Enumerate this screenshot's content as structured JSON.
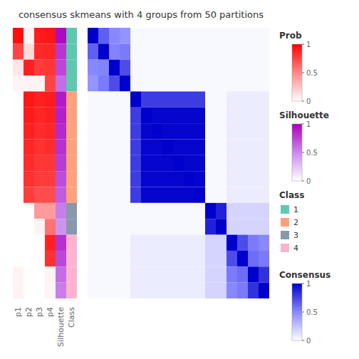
{
  "chart_data": {
    "type": "heatmap",
    "title": "consensus skmeans with 4 groups from 50 partitions",
    "sidebars": [
      {
        "name": "p1",
        "colorbar": "Prob",
        "values": [
          0.95,
          0.75,
          0.1,
          0.05,
          0.0,
          0.0,
          0.0,
          0.0,
          0.0,
          0.0,
          0.0,
          0.0,
          0.0,
          0.0,
          0.0,
          0.05,
          0.05
        ]
      },
      {
        "name": "p2",
        "colorbar": "Prob",
        "values": [
          0.05,
          0.15,
          0.88,
          0.05,
          0.92,
          0.9,
          0.88,
          0.86,
          0.84,
          0.82,
          0.78,
          0.0,
          0.0,
          0.0,
          0.0,
          0.0,
          0.0
        ]
      },
      {
        "name": "p3",
        "colorbar": "Prob",
        "values": [
          0.9,
          0.85,
          0.78,
          0.05,
          0.88,
          0.86,
          0.84,
          0.82,
          0.8,
          0.78,
          0.72,
          0.42,
          0.05,
          0.0,
          0.0,
          0.0,
          0.0
        ]
      },
      {
        "name": "p4",
        "colorbar": "Prob",
        "values": [
          0.92,
          0.86,
          0.8,
          0.75,
          0.9,
          0.88,
          0.86,
          0.84,
          0.8,
          0.78,
          0.72,
          0.42,
          0.58,
          0.88,
          0.82,
          0.05,
          0.04
        ]
      },
      {
        "name": "Silhouette",
        "colorbar": "Silhouette",
        "values": [
          0.96,
          0.8,
          0.74,
          0.6,
          0.9,
          0.88,
          0.85,
          0.82,
          0.78,
          0.72,
          0.66,
          0.54,
          0.46,
          0.82,
          0.74,
          0.6,
          0.54
        ]
      }
    ],
    "class_column": {
      "name": "Class",
      "values": [
        1,
        1,
        1,
        1,
        2,
        2,
        2,
        2,
        2,
        2,
        2,
        3,
        3,
        4,
        4,
        4,
        4
      ],
      "colors": {
        "1": [
          0.37,
          0.78,
          0.69
        ],
        "2": [
          1.0,
          0.63,
          0.48
        ],
        "3": [
          0.53,
          0.6,
          0.67
        ],
        "4": [
          1.0,
          0.7,
          0.82
        ]
      }
    },
    "cells_colorbar": "Consensus",
    "cells": [
      [
        1,
        0.65,
        0.5,
        0.45,
        0.03,
        0.03,
        0.03,
        0.03,
        0.03,
        0.03,
        0.03,
        0.03,
        0.03,
        0.03,
        0.03,
        0.03,
        0.03
      ],
      [
        0.65,
        1,
        0.52,
        0.55,
        0.03,
        0.03,
        0.03,
        0.03,
        0.03,
        0.03,
        0.03,
        0.03,
        0.03,
        0.03,
        0.03,
        0.03,
        0.03
      ],
      [
        0.5,
        0.52,
        1,
        0.72,
        0.03,
        0.03,
        0.03,
        0.03,
        0.03,
        0.03,
        0.03,
        0.03,
        0.03,
        0.03,
        0.03,
        0.03,
        0.03
      ],
      [
        0.45,
        0.55,
        0.72,
        1,
        0.03,
        0.03,
        0.03,
        0.03,
        0.03,
        0.03,
        0.03,
        0.03,
        0.03,
        0.03,
        0.03,
        0.03,
        0.03
      ],
      [
        0.03,
        0.03,
        0.03,
        0.03,
        1,
        0.78,
        0.78,
        0.78,
        0.78,
        0.78,
        0.78,
        0.03,
        0.03,
        0.08,
        0.08,
        0.08,
        0.08
      ],
      [
        0.03,
        0.03,
        0.03,
        0.03,
        0.78,
        1,
        0.98,
        0.98,
        0.98,
        0.98,
        0.98,
        0.03,
        0.03,
        0.08,
        0.08,
        0.08,
        0.08
      ],
      [
        0.03,
        0.03,
        0.03,
        0.03,
        0.78,
        0.98,
        1,
        0.98,
        0.98,
        0.98,
        0.98,
        0.03,
        0.03,
        0.08,
        0.08,
        0.08,
        0.08
      ],
      [
        0.03,
        0.03,
        0.03,
        0.03,
        0.78,
        0.98,
        0.98,
        1,
        0.98,
        0.98,
        0.98,
        0.03,
        0.03,
        0.08,
        0.08,
        0.08,
        0.08
      ],
      [
        0.03,
        0.03,
        0.03,
        0.03,
        0.78,
        0.98,
        0.98,
        0.98,
        1,
        0.98,
        0.98,
        0.03,
        0.03,
        0.08,
        0.08,
        0.08,
        0.08
      ],
      [
        0.03,
        0.03,
        0.03,
        0.03,
        0.78,
        0.98,
        0.98,
        0.98,
        0.98,
        1,
        0.98,
        0.03,
        0.03,
        0.08,
        0.08,
        0.08,
        0.08
      ],
      [
        0.03,
        0.03,
        0.03,
        0.03,
        0.78,
        0.98,
        0.98,
        0.98,
        0.98,
        0.98,
        1,
        0.03,
        0.03,
        0.08,
        0.08,
        0.08,
        0.08
      ],
      [
        0.03,
        0.03,
        0.03,
        0.03,
        0.03,
        0.03,
        0.03,
        0.03,
        0.03,
        0.03,
        0.03,
        1,
        0.88,
        0.18,
        0.18,
        0.18,
        0.18
      ],
      [
        0.03,
        0.03,
        0.03,
        0.03,
        0.03,
        0.03,
        0.03,
        0.03,
        0.03,
        0.03,
        0.03,
        0.88,
        1,
        0.18,
        0.18,
        0.18,
        0.18
      ],
      [
        0.03,
        0.03,
        0.03,
        0.03,
        0.08,
        0.08,
        0.08,
        0.08,
        0.08,
        0.08,
        0.08,
        0.18,
        0.18,
        1,
        0.72,
        0.55,
        0.5
      ],
      [
        0.03,
        0.03,
        0.03,
        0.03,
        0.08,
        0.08,
        0.08,
        0.08,
        0.08,
        0.08,
        0.08,
        0.18,
        0.18,
        0.72,
        1,
        0.6,
        0.55
      ],
      [
        0.03,
        0.03,
        0.03,
        0.03,
        0.08,
        0.08,
        0.08,
        0.08,
        0.08,
        0.08,
        0.08,
        0.18,
        0.18,
        0.55,
        0.6,
        1,
        0.82
      ],
      [
        0.03,
        0.03,
        0.03,
        0.03,
        0.08,
        0.08,
        0.08,
        0.08,
        0.08,
        0.08,
        0.08,
        0.18,
        0.18,
        0.5,
        0.55,
        0.82,
        1
      ]
    ],
    "colorbars": [
      {
        "title": "Prob",
        "colors": [
          "#FFFFFF",
          "#FF8888",
          "#FF0000"
        ],
        "range": [
          0,
          1
        ],
        "ticks": [
          0,
          0.5,
          1
        ]
      },
      {
        "title": "Silhouette",
        "colors": [
          "#FFFFFF",
          "#CC88EE",
          "#AA00BB"
        ],
        "range": [
          0,
          1
        ],
        "ticks": [
          0,
          0.5,
          1
        ]
      },
      {
        "title": "Consensus",
        "colors": [
          "#FFFFFF",
          "#8888FF",
          "#0000CC"
        ],
        "range": [
          0,
          1
        ],
        "ticks": [
          0,
          0.5,
          1
        ]
      }
    ],
    "class_legend": {
      "title": "Class",
      "labels": [
        "1",
        "2",
        "3",
        "4"
      ],
      "colors": [
        "#5EC8B0",
        "#FFA07A",
        "#8899AA",
        "#FFB3CC"
      ]
    }
  }
}
